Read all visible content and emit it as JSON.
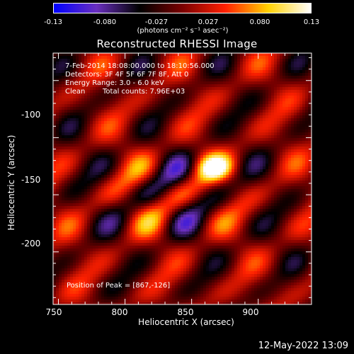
{
  "chart_data": {
    "type": "heatmap",
    "title": "Reconstructed RHESSI Image",
    "xlabel": "Heliocentric X (arcsec)",
    "ylabel": "Heliocentric Y (arcsec)",
    "xlim": [
      746,
      940
    ],
    "ylim": [
      -246,
      -26
    ],
    "x_ticks": [
      "750",
      "800",
      "850",
      "900"
    ],
    "x_tick_values": [
      750,
      800,
      850,
      900
    ],
    "y_ticks": [
      "-100",
      "-150",
      "-200"
    ],
    "y_tick_values": [
      -100,
      -150,
      -200
    ],
    "colorbar": {
      "min": -0.13,
      "max": 0.13,
      "tick_labels": [
        "-0.13",
        "-0.080",
        "-0.027",
        "0.027",
        "0.080",
        "0.13"
      ],
      "tick_values": [
        -0.13,
        -0.08,
        -0.027,
        0.027,
        0.08,
        0.13
      ],
      "unit": "(photons cm⁻² s⁻¹ asec⁻²)",
      "colors": [
        "#0000ff",
        "#6a2fbf",
        "#000000",
        "#7a0000",
        "#ff2000",
        "#ffd000",
        "#ffffff"
      ]
    },
    "annotations": {
      "time": "7-Feb-2014 18:08:00.000 to 18:10:56.000",
      "detectors": "Detectors: 3F 4F 5F 6F 7F 8F, Att 0",
      "energy": "Energy Range: 3.0 - 6.0 keV",
      "method": "Clean",
      "counts": "Total counts: 7.96E+03",
      "peak": "Position of Peak = [867,-126]"
    },
    "peak": {
      "x": 867,
      "y": -126
    }
  },
  "footer": {
    "timestamp": "12-May-2022 13:09"
  }
}
